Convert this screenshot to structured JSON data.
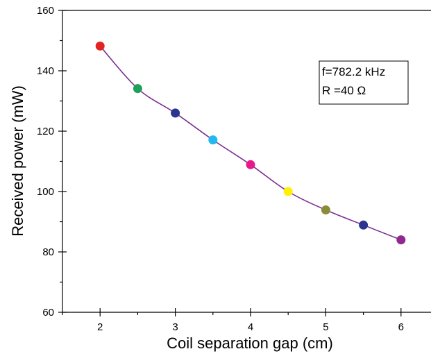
{
  "chart_data": {
    "type": "line",
    "title": "",
    "xlabel": "Coil separation gap (cm)",
    "ylabel": "Received power (mW)",
    "xlim": [
      1.5,
      6.5
    ],
    "ylim": [
      60,
      160
    ],
    "x_ticks": [
      2,
      3,
      4,
      5,
      6
    ],
    "x_tick_labels": [
      "2",
      "3",
      "4",
      "5",
      "6"
    ],
    "y_ticks": [
      60,
      80,
      100,
      120,
      140,
      160
    ],
    "y_tick_labels": [
      "60",
      "80",
      "100",
      "120",
      "140",
      "160"
    ],
    "grid": false,
    "line_color": "#7b2f8f",
    "series": [
      {
        "x": [
          2,
          2.5,
          3,
          3.5,
          4,
          4.5,
          5,
          5.5,
          6
        ],
        "y": [
          148.2,
          134.1,
          126.0,
          117.1,
          108.9,
          100.0,
          93.9,
          88.9,
          84.0
        ],
        "point_colors": [
          "#e32222",
          "#1fa05a",
          "#2b3590",
          "#25b7ef",
          "#e8178a",
          "#fff200",
          "#8a8c36",
          "#2b3590",
          "#8e2a8f"
        ]
      }
    ],
    "annotation": {
      "lines": [
        "f=782.2 kHz",
        "R =40 Ω"
      ]
    }
  }
}
